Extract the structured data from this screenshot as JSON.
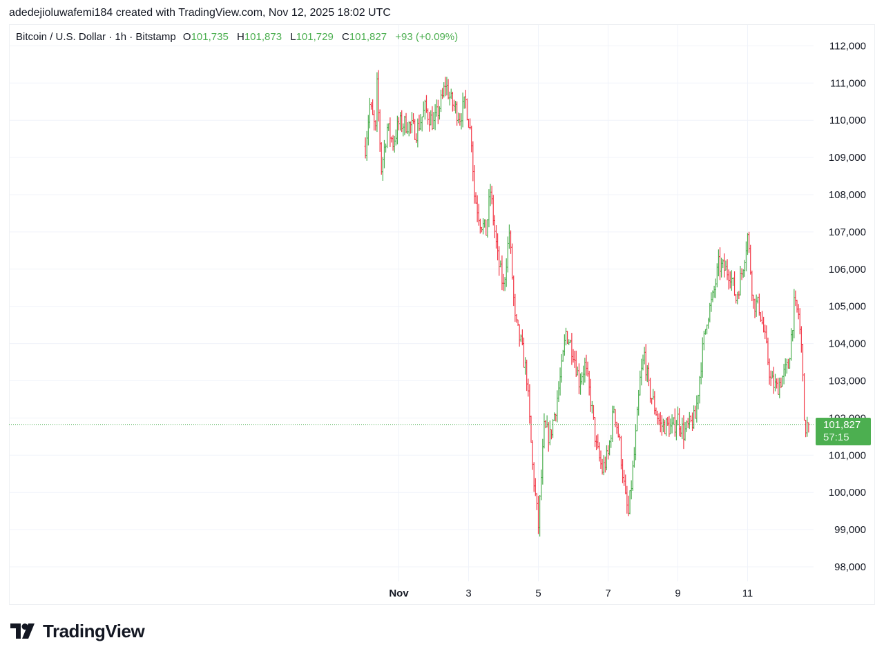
{
  "header": {
    "attribution": "adedejioluwafemi184 created with TradingView.com, Nov 12, 2025 18:02 UTC"
  },
  "legend": {
    "symbol": "Bitcoin / U.S. Dollar · 1h · Bitstamp",
    "open_label": "O",
    "open": "101,735",
    "high_label": "H",
    "high": "101,873",
    "low_label": "L",
    "low": "101,729",
    "close_label": "C",
    "close": "101,827",
    "change": "+93 (+0.09%)"
  },
  "price_tag": {
    "price": "101,827",
    "countdown": "57:15"
  },
  "footer": {
    "brand": "TradingView"
  },
  "colors": {
    "up": "#4caf50",
    "down": "#f23645",
    "grid": "#f0f3fa",
    "tag": "#4caf50"
  },
  "chart_data": {
    "type": "bar",
    "style": "OHLC bars, 1h",
    "title": "Bitcoin / U.S. Dollar · 1h · Bitstamp",
    "ylim": [
      97600,
      112700
    ],
    "yticks": [
      {
        "value": 98000,
        "label": "98,000"
      },
      {
        "value": 99000,
        "label": "99,000"
      },
      {
        "value": 100000,
        "label": "100,000"
      },
      {
        "value": 101000,
        "label": "101,000"
      },
      {
        "value": 102000,
        "label": "102,000"
      },
      {
        "value": 103000,
        "label": "103,000"
      },
      {
        "value": 104000,
        "label": "104,000"
      },
      {
        "value": 105000,
        "label": "105,000"
      },
      {
        "value": 106000,
        "label": "106,000"
      },
      {
        "value": 107000,
        "label": "107,000"
      },
      {
        "value": 108000,
        "label": "108,000"
      },
      {
        "value": 109000,
        "label": "109,000"
      },
      {
        "value": 110000,
        "label": "110,000"
      },
      {
        "value": 111000,
        "label": "111,000"
      },
      {
        "value": 112000,
        "label": "112,000"
      }
    ],
    "xticks": [
      {
        "value": "2025-11-01",
        "label": "Nov",
        "bold": true
      },
      {
        "value": "2025-11-03",
        "label": "3",
        "bold": false
      },
      {
        "value": "2025-11-05",
        "label": "5",
        "bold": false
      },
      {
        "value": "2025-11-07",
        "label": "7",
        "bold": false
      },
      {
        "value": "2025-11-09",
        "label": "9",
        "bold": false
      },
      {
        "value": "2025-11-11",
        "label": "11",
        "bold": false
      }
    ],
    "x_range": [
      "2025-10-31T00:00",
      "2025-11-12T18:00"
    ],
    "last_price": 101827,
    "grid": true,
    "path": [
      {
        "t": "2025-10-31T01:00",
        "p": 109300
      },
      {
        "t": "2025-10-31T04:00",
        "p": 110400
      },
      {
        "t": "2025-10-31T08:00",
        "p": 109700
      },
      {
        "t": "2025-10-31T09:00",
        "p": 110900
      },
      {
        "t": "2025-10-31T12:00",
        "p": 108700
      },
      {
        "t": "2025-10-31T16:00",
        "p": 109800
      },
      {
        "t": "2025-10-31T20:00",
        "p": 109400
      },
      {
        "t": "2025-11-01T00:00",
        "p": 109900
      },
      {
        "t": "2025-11-01T06:00",
        "p": 109900
      },
      {
        "t": "2025-11-01T12:00",
        "p": 109700
      },
      {
        "t": "2025-11-01T18:00",
        "p": 110300
      },
      {
        "t": "2025-11-02T00:00",
        "p": 109900
      },
      {
        "t": "2025-11-02T06:00",
        "p": 110600
      },
      {
        "t": "2025-11-02T08:00",
        "p": 111000
      },
      {
        "t": "2025-11-02T12:00",
        "p": 110500
      },
      {
        "t": "2025-11-02T18:00",
        "p": 110100
      },
      {
        "t": "2025-11-02T22:00",
        "p": 110500
      },
      {
        "t": "2025-11-03T02:00",
        "p": 109500
      },
      {
        "t": "2025-11-03T04:00",
        "p": 108000
      },
      {
        "t": "2025-11-03T08:00",
        "p": 107300
      },
      {
        "t": "2025-11-03T12:00",
        "p": 107000
      },
      {
        "t": "2025-11-03T15:00",
        "p": 108100
      },
      {
        "t": "2025-11-03T20:00",
        "p": 106300
      },
      {
        "t": "2025-11-04T00:00",
        "p": 105500
      },
      {
        "t": "2025-11-04T04:00",
        "p": 107000
      },
      {
        "t": "2025-11-04T08:00",
        "p": 104600
      },
      {
        "t": "2025-11-04T12:00",
        "p": 104000
      },
      {
        "t": "2025-11-04T16:00",
        "p": 103100
      },
      {
        "t": "2025-11-04T20:00",
        "p": 100700
      },
      {
        "t": "2025-11-05T00:00",
        "p": 99100
      },
      {
        "t": "2025-11-05T04:00",
        "p": 101700
      },
      {
        "t": "2025-11-05T08:00",
        "p": 101500
      },
      {
        "t": "2025-11-05T12:00",
        "p": 102300
      },
      {
        "t": "2025-11-05T16:00",
        "p": 103300
      },
      {
        "t": "2025-11-05T19:00",
        "p": 104300
      },
      {
        "t": "2025-11-06T00:00",
        "p": 103800
      },
      {
        "t": "2025-11-06T04:00",
        "p": 103000
      },
      {
        "t": "2025-11-06T08:00",
        "p": 103400
      },
      {
        "t": "2025-11-06T12:00",
        "p": 102500
      },
      {
        "t": "2025-11-06T16:00",
        "p": 101200
      },
      {
        "t": "2025-11-06T20:00",
        "p": 100600
      },
      {
        "t": "2025-11-07T00:00",
        "p": 101000
      },
      {
        "t": "2025-11-07T04:00",
        "p": 102300
      },
      {
        "t": "2025-11-07T08:00",
        "p": 101300
      },
      {
        "t": "2025-11-07T12:00",
        "p": 99800
      },
      {
        "t": "2025-11-07T14:00",
        "p": 99400
      },
      {
        "t": "2025-11-07T18:00",
        "p": 101000
      },
      {
        "t": "2025-11-07T22:00",
        "p": 103000
      },
      {
        "t": "2025-11-08T01:00",
        "p": 103700
      },
      {
        "t": "2025-11-08T04:00",
        "p": 102800
      },
      {
        "t": "2025-11-08T08:00",
        "p": 102300
      },
      {
        "t": "2025-11-08T12:00",
        "p": 101800
      },
      {
        "t": "2025-11-08T16:00",
        "p": 101800
      },
      {
        "t": "2025-11-08T20:00",
        "p": 101700
      },
      {
        "t": "2025-11-09T00:00",
        "p": 102000
      },
      {
        "t": "2025-11-09T04:00",
        "p": 101600
      },
      {
        "t": "2025-11-09T08:00",
        "p": 101800
      },
      {
        "t": "2025-11-09T12:00",
        "p": 102000
      },
      {
        "t": "2025-11-09T16:00",
        "p": 103500
      },
      {
        "t": "2025-11-09T20:00",
        "p": 104700
      },
      {
        "t": "2025-11-10T00:00",
        "p": 105200
      },
      {
        "t": "2025-11-10T04:00",
        "p": 106100
      },
      {
        "t": "2025-11-10T08:00",
        "p": 106000
      },
      {
        "t": "2025-11-10T12:00",
        "p": 105900
      },
      {
        "t": "2025-11-10T16:00",
        "p": 105200
      },
      {
        "t": "2025-11-10T20:00",
        "p": 105900
      },
      {
        "t": "2025-11-11T00:00",
        "p": 106900
      },
      {
        "t": "2025-11-11T04:00",
        "p": 105100
      },
      {
        "t": "2025-11-11T08:00",
        "p": 105000
      },
      {
        "t": "2025-11-11T12:00",
        "p": 104100
      },
      {
        "t": "2025-11-11T16:00",
        "p": 103000
      },
      {
        "t": "2025-11-11T20:00",
        "p": 102800
      },
      {
        "t": "2025-11-12T00:00",
        "p": 103100
      },
      {
        "t": "2025-11-12T04:00",
        "p": 103400
      },
      {
        "t": "2025-11-12T08:00",
        "p": 105000
      },
      {
        "t": "2025-11-12T11:00",
        "p": 104800
      },
      {
        "t": "2025-11-12T14:00",
        "p": 103400
      },
      {
        "t": "2025-11-12T15:00",
        "p": 101700
      },
      {
        "t": "2025-11-12T18:00",
        "p": 101827
      }
    ]
  }
}
